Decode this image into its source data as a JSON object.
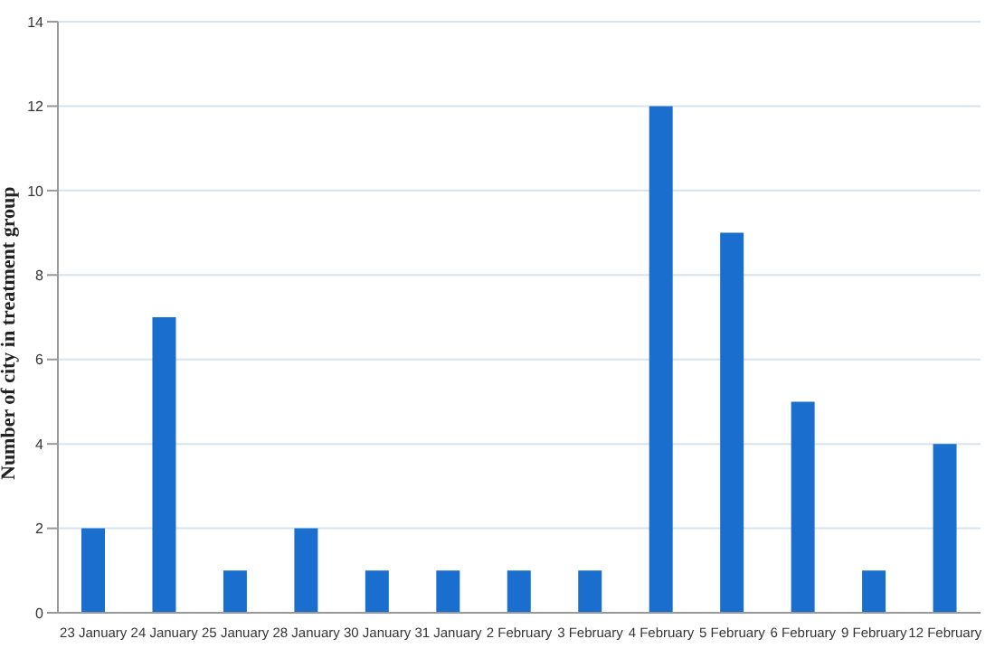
{
  "chart_data": {
    "type": "bar",
    "ylabel": "Number of city in treatment group",
    "categories": [
      "23 January",
      "24 January",
      "25 January",
      "28 January",
      "30 January",
      "31 January",
      "2 February",
      "3 February",
      "4 February",
      "5 February",
      "6 February",
      "9 February",
      "12 February"
    ],
    "values": [
      2,
      7,
      1,
      2,
      1,
      1,
      1,
      1,
      12,
      9,
      5,
      1,
      4
    ],
    "color": "#1a6fce",
    "ylim": [
      0,
      14
    ],
    "yticks": [
      0,
      2,
      4,
      6,
      8,
      10,
      12,
      14
    ],
    "grid": "y"
  }
}
